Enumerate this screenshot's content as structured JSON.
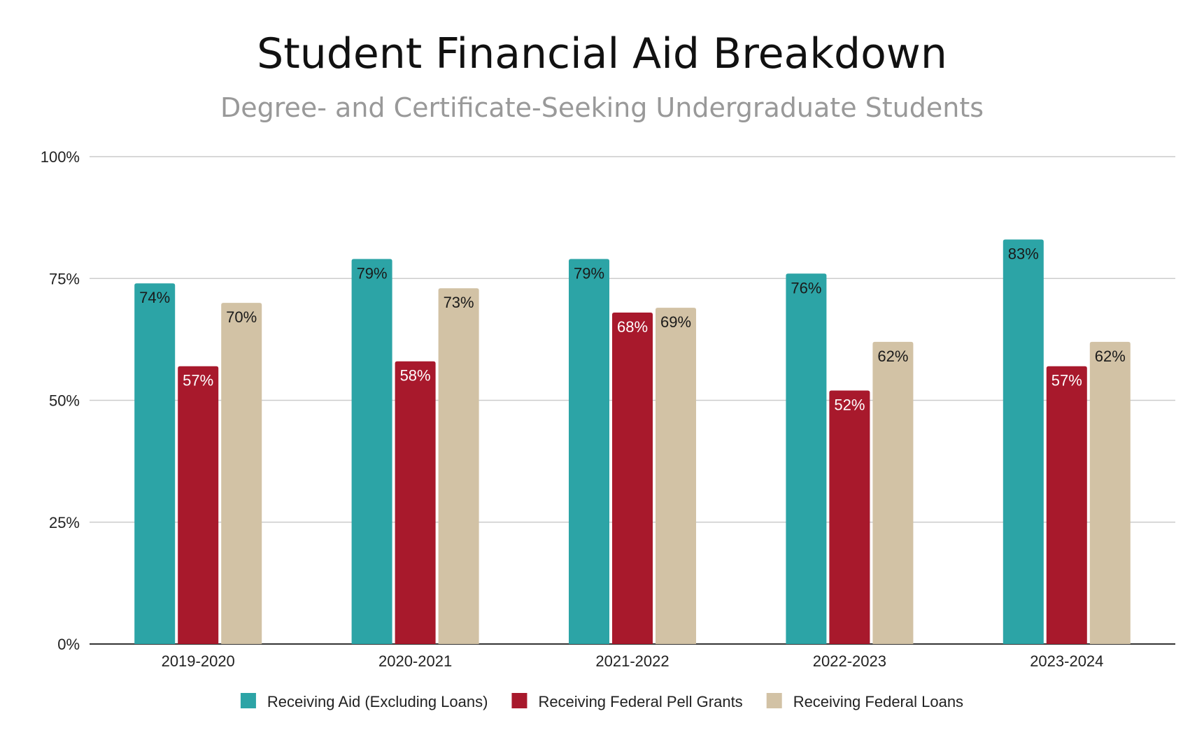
{
  "chart_data": {
    "type": "bar",
    "title": "Student Financial Aid Breakdown",
    "subtitle": "Degree- and Certificate-Seeking Undergraduate Students",
    "xlabel": "",
    "ylabel": "",
    "ylim": [
      0,
      100
    ],
    "yticks": [
      0,
      25,
      50,
      75,
      100
    ],
    "ytick_labels": [
      "0%",
      "25%",
      "50%",
      "75%",
      "100%"
    ],
    "grid": true,
    "legend_position": "bottom",
    "categories": [
      "2019-2020",
      "2020-2021",
      "2021-2022",
      "2022-2023",
      "2023-2024"
    ],
    "series": [
      {
        "name": "Receiving Aid (Excluding Loans)",
        "color": "#2ca4a6",
        "label_color": "#1a1a1a",
        "values": [
          74,
          79,
          79,
          76,
          83
        ],
        "labels": [
          "74%",
          "79%",
          "79%",
          "76%",
          "83%"
        ]
      },
      {
        "name": "Receiving Federal Pell Grants",
        "color": "#a8192c",
        "label_color": "#ffffff",
        "values": [
          57,
          58,
          68,
          52,
          57
        ],
        "labels": [
          "57%",
          "58%",
          "68%",
          "52%",
          "57%"
        ]
      },
      {
        "name": "Receiving Federal Loans",
        "color": "#d2c2a5",
        "label_color": "#1a1a1a",
        "values": [
          70,
          73,
          69,
          62,
          62
        ],
        "labels": [
          "70%",
          "73%",
          "69%",
          "62%",
          "62%"
        ]
      }
    ]
  }
}
